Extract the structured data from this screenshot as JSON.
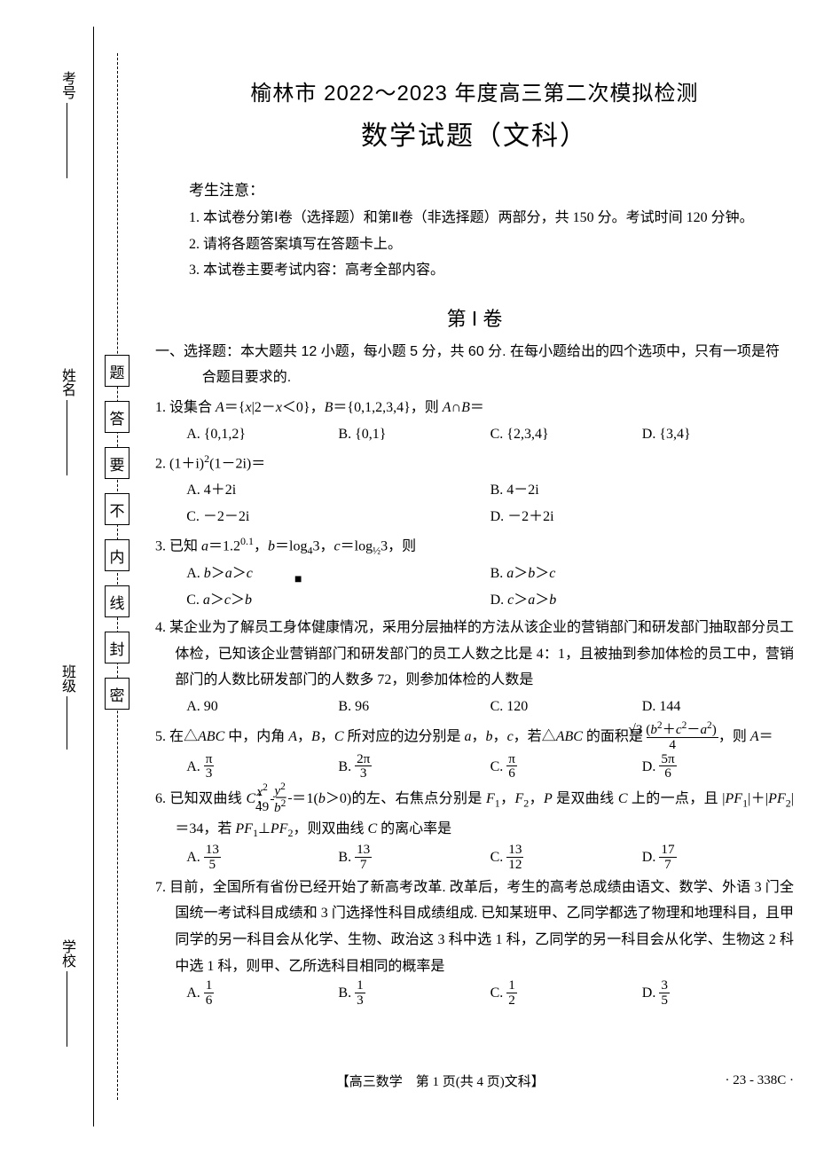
{
  "info_fields": {
    "exam_no": "考号",
    "name": "姓名",
    "class": "班级",
    "school": "学校"
  },
  "seal_column_chars": [
    "题",
    "答",
    "要",
    "不",
    "内",
    "线",
    "封",
    "密"
  ],
  "header": {
    "title_line1": "榆林市 2022～2023 年度高三第二次模拟检测",
    "title_line2": "数学试题（文科）"
  },
  "notice": {
    "head": "考生注意：",
    "items": [
      "1. 本试卷分第Ⅰ卷（选择题）和第Ⅱ卷（非选择题）两部分，共 150 分。考试时间 120 分钟。",
      "2. 请将各题答案填写在答题卡上。",
      "3. 本试卷主要考试内容：高考全部内容。"
    ]
  },
  "section1_title": "第 Ⅰ 卷",
  "section1_instruction": "一、选择题：本大题共 12 小题，每小题 5 分，共 60 分. 在每小题给出的四个选项中，只有一项是符合题目要求的.",
  "questions": [
    {
      "num": "1.",
      "stem_html": "设集合 <span class='italic'>A</span>＝{<span class='italic'>x</span>|2－<span class='italic'>x</span>＜0}，<span class='italic'>B</span>＝{0,1,2,3,4}，则 <span class='italic'>A</span>∩<span class='italic'>B</span>＝",
      "layout": "opt4",
      "options": [
        "A. {0,1,2}",
        "B. {0,1}",
        "C. {2,3,4}",
        "D. {3,4}"
      ]
    },
    {
      "num": "2.",
      "stem_html": "(1＋i)<span class='sup'>2</span>(1－2i)＝",
      "layout": "opt2",
      "options": [
        "A. 4＋2i",
        "B. 4－2i",
        "C. －2－2i",
        "D. －2＋2i"
      ]
    },
    {
      "num": "3.",
      "stem_html": "已知 <span class='italic'>a</span>＝1.2<span class='sup'>0.1</span>，<span class='italic'>b</span>＝log<span class='sub'>4</span>3，<span class='italic'>c</span>＝log<span class='sub'>½</span>3，则",
      "layout": "opt2",
      "options": [
        "A. <span class='italic'>b</span>＞<span class='italic'>a</span>＞<span class='italic'>c</span>",
        "B. <span class='italic'>a</span>＞<span class='italic'>b</span>＞<span class='italic'>c</span>",
        "C. <span class='italic'>a</span>＞<span class='italic'>c</span>＞<span class='italic'>b</span>",
        "D. <span class='italic'>c</span>＞<span class='italic'>a</span>＞<span class='italic'>b</span>"
      ]
    },
    {
      "num": "4.",
      "stem_html": "某企业为了解员工身体健康情况，采用分层抽样的方法从该企业的营销部门和研发部门抽取部分员工体检，已知该企业营销部门和研发部门的员工人数之比是 4：1，且被抽到参加体检的员工中，营销部门的人数比研发部门的人数多 72，则参加体检的人数是",
      "layout": "opt4",
      "options": [
        "A. 90",
        "B. 96",
        "C. 120",
        "D. 144"
      ]
    },
    {
      "num": "5.",
      "stem_html": "在△<span class='italic'>ABC</span> 中，内角 <span class='italic'>A</span>，<span class='italic'>B</span>，<span class='italic'>C</span> 所对应的边分别是 <span class='italic'>a</span>，<span class='italic'>b</span>，<span class='italic'>c</span>，若△<span class='italic'>ABC</span> 的面积是 <span class='frac'><span class='num'>√3 (<span class='italic'>b</span><span class='sup'>2</span>＋<span class='italic'>c</span><span class='sup'>2</span>－<span class='italic'>a</span><span class='sup'>2</span>)</span><span class='den'>4</span></span>，则 <span class='italic'>A</span>＝",
      "layout": "opt4",
      "options": [
        "A. <span class='frac'><span class='num'>π</span><span class='den'>3</span></span>",
        "B. <span class='frac'><span class='num'>2π</span><span class='den'>3</span></span>",
        "C. <span class='frac'><span class='num'>π</span><span class='den'>6</span></span>",
        "D. <span class='frac'><span class='num'>5π</span><span class='den'>6</span></span>"
      ]
    },
    {
      "num": "6.",
      "stem_html": "已知双曲线 <span class='italic'>C</span>：<span class='frac'><span class='num'><span class='italic'>x</span><span class='sup'>2</span></span><span class='den'>49</span></span>－<span class='frac'><span class='num'><span class='italic'>y</span><span class='sup'>2</span></span><span class='den'><span class='italic'>b</span><span class='sup'>2</span></span></span>＝1(<span class='italic'>b</span>＞0)的左、右焦点分别是 <span class='italic'>F</span><span class='sub'>1</span>，<span class='italic'>F</span><span class='sub'>2</span>，<span class='italic'>P</span> 是双曲线 <span class='italic'>C</span> 上的一点，且 |<span class='italic'>PF</span><span class='sub'>1</span>|＋|<span class='italic'>PF</span><span class='sub'>2</span>|＝34，若 <span class='italic'>PF</span><span class='sub'>1</span>⊥<span class='italic'>PF</span><span class='sub'>2</span>，则双曲线 <span class='italic'>C</span> 的离心率是",
      "layout": "opt4",
      "options": [
        "A. <span class='frac'><span class='num'>13</span><span class='den'>5</span></span>",
        "B. <span class='frac'><span class='num'>13</span><span class='den'>7</span></span>",
        "C. <span class='frac'><span class='num'>13</span><span class='den'>12</span></span>",
        "D. <span class='frac'><span class='num'>17</span><span class='den'>7</span></span>"
      ]
    },
    {
      "num": "7.",
      "stem_html": "目前，全国所有省份已经开始了新高考改革. 改革后，考生的高考总成绩由语文、数学、外语 3 门全国统一考试科目成绩和 3 门选择性科目成绩组成. 已知某班甲、乙同学都选了物理和地理科目，且甲同学的另一科目会从化学、生物、政治这 3 科中选 1 科，乙同学的另一科目会从化学、生物这 2 科中选 1 科，则甲、乙所选科目相同的概率是",
      "layout": "opt4",
      "options": [
        "A. <span class='frac'><span class='num'>1</span><span class='den'>6</span></span>",
        "B. <span class='frac'><span class='num'>1</span><span class='den'>3</span></span>",
        "C. <span class='frac'><span class='num'>1</span><span class='den'>2</span></span>",
        "D. <span class='frac'><span class='num'>3</span><span class='den'>5</span></span>"
      ]
    }
  ],
  "footer": {
    "center": "【高三数学　第 1 页(共 4 页)文科】",
    "code": "· 23 - 338C ·"
  },
  "cursor_mark": "■"
}
